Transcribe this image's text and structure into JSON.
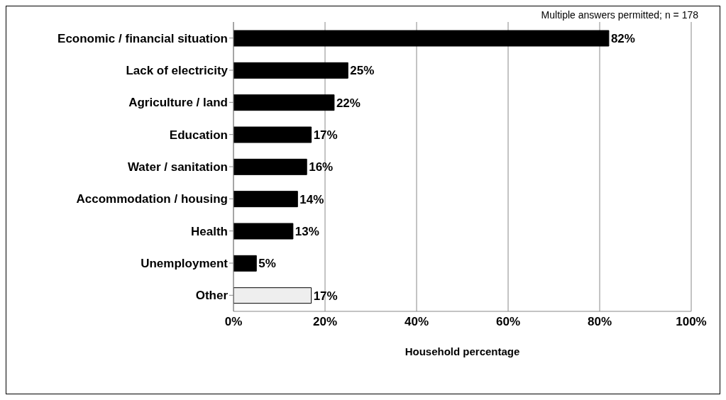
{
  "chart_data": {
    "type": "bar",
    "orientation": "horizontal",
    "xlabel": "Household percentage",
    "categories": [
      "Economic / financial situation",
      "Lack of electricity",
      "Agriculture / land",
      "Education",
      "Water / sanitation",
      "Accommodation / housing",
      "Health",
      "Unemployment",
      "Other"
    ],
    "values": [
      82,
      25,
      22,
      17,
      16,
      14,
      13,
      5,
      17
    ],
    "colors": [
      "#000000",
      "#000000",
      "#000000",
      "#000000",
      "#000000",
      "#000000",
      "#000000",
      "#000000",
      "#eeeeee"
    ],
    "value_labels": [
      "82%",
      "25%",
      "22%",
      "17%",
      "16%",
      "14%",
      "13%",
      "5%",
      "17%"
    ],
    "xlim": [
      0,
      100
    ],
    "xticks": [
      {
        "value": 0,
        "label": "0%"
      },
      {
        "value": 20,
        "label": "20%"
      },
      {
        "value": 40,
        "label": "40%"
      },
      {
        "value": 60,
        "label": "60%"
      },
      {
        "value": 80,
        "label": "80%"
      },
      {
        "value": 100,
        "label": "100%"
      }
    ],
    "grid": "x",
    "annotations": [
      "Multiple answers permitted; n = 178"
    ]
  }
}
